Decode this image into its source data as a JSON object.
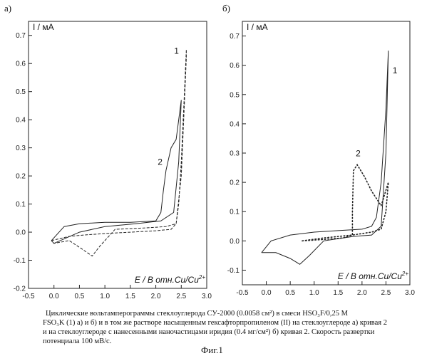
{
  "panels": [
    {
      "letter": "а)",
      "ylabel": "I / мА",
      "xlabel": "E / В отн.Cu/Cu",
      "xlabel_sup": "2+",
      "xticks": [
        "-0.5",
        "0.0",
        "0.5",
        "1.0",
        "1.5",
        "2.0",
        "2.5",
        "3.0"
      ],
      "yticks": [
        "-0.2",
        "-0.1",
        "0.0",
        "0.1",
        "0.2",
        "0.3",
        "0.4",
        "0.5",
        "0.6",
        "0.7"
      ],
      "annotations": [
        "1",
        "2"
      ]
    },
    {
      "letter": "б)",
      "ylabel": "I / мА",
      "xlabel": "E / В отн.Cu/Cu",
      "xlabel_sup": "2+",
      "xticks": [
        "-0.5",
        "0.0",
        "0.5",
        "1.0",
        "1.5",
        "2.0",
        "2.5",
        "3.0"
      ],
      "yticks": [
        "-0.1",
        "0.0",
        "0.1",
        "0.2",
        "0.3",
        "0.4",
        "0.5",
        "0.6",
        "0.7"
      ],
      "annotations": [
        "1",
        "2"
      ]
    }
  ],
  "caption": {
    "line1": "Циклические вольтамперограммы стеклоуглерода СУ-2000 (0.0058 см²) в смеси HSO₃F/0,25 М",
    "line2": "FSO₃K (1) а) и б) и в том же растворе насыщенным гексафторпропиленом (II) на стеклоуглероде а) кривая 2",
    "line3": "и на стеклоуглероде с нанесенными наночастицами иридия (0.4 мг/см²) б) кривая 2. Скорость развертки",
    "line4": "потенциала 100 мВ/с."
  },
  "figure_label": "Фиг.1",
  "chart_data": [
    {
      "type": "line",
      "panel": "а)",
      "ylabel": "I / мА",
      "xlabel": "E / В отн.Cu/Cu2+",
      "xlim": [
        -0.5,
        3.0
      ],
      "ylim": [
        -0.2,
        0.75
      ],
      "grid": false,
      "series": [
        {
          "name": "1",
          "style": "dashed",
          "forward": [
            [
              -0.05,
              -0.03
            ],
            [
              0.3,
              -0.015
            ],
            [
              0.6,
              -0.01
            ],
            [
              1.0,
              -0.005
            ],
            [
              1.5,
              0.0
            ],
            [
              2.0,
              0.005
            ],
            [
              2.3,
              0.01
            ],
            [
              2.4,
              0.03
            ],
            [
              2.45,
              0.1
            ],
            [
              2.5,
              0.25
            ],
            [
              2.55,
              0.45
            ],
            [
              2.6,
              0.65
            ]
          ],
          "reverse": [
            [
              2.6,
              0.62
            ],
            [
              2.5,
              0.2
            ],
            [
              2.4,
              0.03
            ],
            [
              2.2,
              0.02
            ],
            [
              1.8,
              0.015
            ],
            [
              1.2,
              0.01
            ],
            [
              0.9,
              -0.05
            ],
            [
              0.75,
              -0.085
            ],
            [
              0.55,
              -0.06
            ],
            [
              0.3,
              -0.03
            ],
            [
              0.0,
              -0.04
            ],
            [
              -0.05,
              -0.03
            ]
          ]
        },
        {
          "name": "2",
          "style": "solid",
          "forward": [
            [
              -0.05,
              -0.03
            ],
            [
              0.2,
              0.02
            ],
            [
              0.5,
              0.03
            ],
            [
              1.0,
              0.035
            ],
            [
              1.5,
              0.035
            ],
            [
              2.0,
              0.04
            ],
            [
              2.1,
              0.07
            ],
            [
              2.15,
              0.15
            ],
            [
              2.2,
              0.22
            ],
            [
              2.3,
              0.3
            ],
            [
              2.4,
              0.33
            ],
            [
              2.45,
              0.4
            ],
            [
              2.5,
              0.47
            ]
          ],
          "reverse": [
            [
              2.5,
              0.47
            ],
            [
              2.45,
              0.25
            ],
            [
              2.35,
              0.07
            ],
            [
              2.1,
              0.04
            ],
            [
              1.6,
              0.03
            ],
            [
              1.0,
              0.02
            ],
            [
              0.5,
              0.0
            ],
            [
              0.0,
              -0.04
            ],
            [
              -0.05,
              -0.03
            ]
          ]
        }
      ]
    },
    {
      "type": "line",
      "panel": "б)",
      "ylabel": "I / мА",
      "xlabel": "E / В отн.Cu/Cu2+",
      "xlim": [
        -0.5,
        3.0
      ],
      "ylim": [
        -0.15,
        0.75
      ],
      "grid": false,
      "series": [
        {
          "name": "1",
          "style": "solid",
          "forward": [
            [
              -0.1,
              -0.04
            ],
            [
              0.1,
              0.0
            ],
            [
              0.5,
              0.02
            ],
            [
              1.0,
              0.03
            ],
            [
              1.5,
              0.035
            ],
            [
              2.0,
              0.04
            ],
            [
              2.2,
              0.05
            ],
            [
              2.3,
              0.08
            ],
            [
              2.4,
              0.2
            ],
            [
              2.5,
              0.45
            ],
            [
              2.55,
              0.65
            ]
          ],
          "reverse": [
            [
              2.55,
              0.65
            ],
            [
              2.5,
              0.3
            ],
            [
              2.4,
              0.05
            ],
            [
              2.2,
              0.02
            ],
            [
              1.8,
              0.015
            ],
            [
              1.2,
              0.0
            ],
            [
              0.9,
              -0.05
            ],
            [
              0.7,
              -0.08
            ],
            [
              0.5,
              -0.06
            ],
            [
              0.2,
              -0.04
            ],
            [
              -0.1,
              -0.04
            ]
          ]
        },
        {
          "name": "2",
          "style": "dotted",
          "forward": [
            [
              0.75,
              0.0
            ],
            [
              1.2,
              0.005
            ],
            [
              1.6,
              0.01
            ],
            [
              1.8,
              0.02
            ],
            [
              1.8,
              0.1
            ],
            [
              1.82,
              0.24
            ],
            [
              1.9,
              0.26
            ],
            [
              2.05,
              0.22
            ],
            [
              2.2,
              0.17
            ],
            [
              2.4,
              0.12
            ],
            [
              2.55,
              0.2
            ]
          ],
          "reverse": [
            [
              2.55,
              0.2
            ],
            [
              2.5,
              0.1
            ],
            [
              2.4,
              0.04
            ],
            [
              2.2,
              0.03
            ],
            [
              1.8,
              0.02
            ],
            [
              1.2,
              0.01
            ],
            [
              0.75,
              0.0
            ]
          ]
        }
      ]
    }
  ]
}
